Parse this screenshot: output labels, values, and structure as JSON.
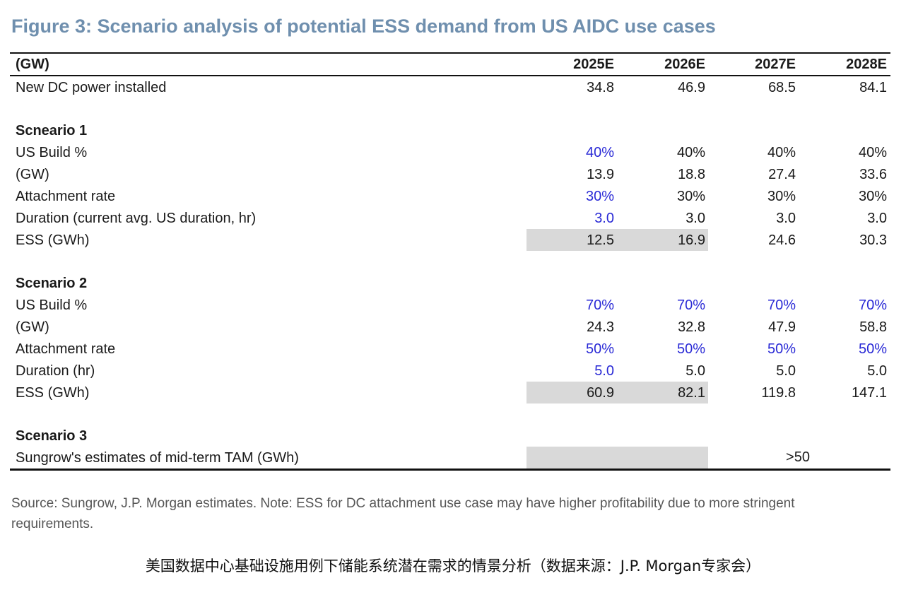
{
  "title": "Figure 3: Scenario analysis of potential ESS demand from US AIDC use cases",
  "header": {
    "unit": "(GW)",
    "years": [
      "2025E",
      "2026E",
      "2027E",
      "2028E"
    ]
  },
  "new_dc": {
    "label": "New DC power installed",
    "values": [
      "34.8",
      "46.9",
      "68.5",
      "84.1"
    ]
  },
  "scenario1": {
    "heading": "Scneario 1",
    "rows": [
      {
        "label": "US Build %",
        "values": [
          "40%",
          "40%",
          "40%",
          "40%"
        ]
      },
      {
        "label": "(GW)",
        "values": [
          "13.9",
          "18.8",
          "27.4",
          "33.6"
        ]
      },
      {
        "label": "Attachment rate",
        "values": [
          "30%",
          "30%",
          "30%",
          "30%"
        ]
      },
      {
        "label": "Duration (current avg. US duration, hr)",
        "values": [
          "3.0",
          "3.0",
          "3.0",
          "3.0"
        ]
      },
      {
        "label": "ESS (GWh)",
        "values": [
          "12.5",
          "16.9",
          "24.6",
          "30.3"
        ]
      }
    ]
  },
  "scenario2": {
    "heading": "Scenario 2",
    "rows": [
      {
        "label": "US Build %",
        "values": [
          "70%",
          "70%",
          "70%",
          "70%"
        ]
      },
      {
        "label": "(GW)",
        "values": [
          "24.3",
          "32.8",
          "47.9",
          "58.8"
        ]
      },
      {
        "label": "Attachment rate",
        "values": [
          "50%",
          "50%",
          "50%",
          "50%"
        ]
      },
      {
        "label": "Duration (hr)",
        "values": [
          "5.0",
          "5.0",
          "5.0",
          "5.0"
        ]
      },
      {
        "label": "ESS (GWh)",
        "values": [
          "60.9",
          "82.1",
          "119.8",
          "147.1"
        ]
      }
    ]
  },
  "scenario3": {
    "heading": "Scenario 3",
    "row": {
      "label": "Sungrow's estimates of mid-term TAM (GWh)",
      "value": ">50"
    }
  },
  "source": "Source: Sungrow, J.P. Morgan estimates. Note: ESS for DC attachment use case may have higher profitability due to more stringent requirements.",
  "caption": "美国数据中心基础设施用例下储能系统潜在需求的情景分析（数据来源：J.P. Morgan专家会）",
  "colors": {
    "title": "#6f8fae",
    "input_blue": "#2a2ad6",
    "shade": "#d9d9d9"
  }
}
